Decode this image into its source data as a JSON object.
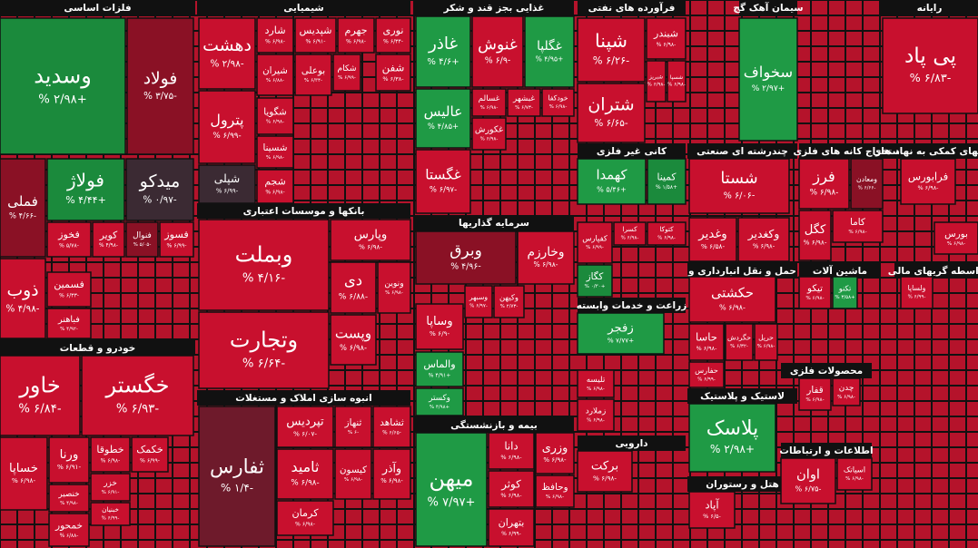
{
  "sectors": [
    {
      "title": "فلزات اساسی",
      "tiles": [
        {
          "name": "وسدید",
          "change": "+۲/۹۸ %",
          "color": "#1b8a3c"
        },
        {
          "name": "فولاد",
          "change": "-۳/۷۵ %",
          "color": "#8a1125"
        },
        {
          "name": "فملی",
          "change": "-۴/۶۶ %",
          "color": "#8a1125"
        },
        {
          "name": "فولاژ",
          "change": "+۴/۴۴ %",
          "color": "#1b8a3c"
        },
        {
          "name": "میدکو",
          "change": "-۰/۹۷ %",
          "color": "#3b2a33"
        },
        {
          "name": "کویر",
          "change": "-۴/۹۸ %",
          "color": "#c8102e"
        },
        {
          "name": "فنوال",
          "change": "-۵/۰۵ %",
          "color": "#8a1125"
        },
        {
          "name": "فسوز",
          "change": "-۶/۹۹ %",
          "color": "#c8102e"
        },
        {
          "name": "فخوز",
          "change": "-۵/۷۸ %",
          "color": "#c8102e"
        },
        {
          "name": "ذوب",
          "change": "-۴/۹۸ %",
          "color": "#c8102e"
        },
        {
          "name": "فسمین",
          "change": "-۶/۳۳ %",
          "color": "#c8102e"
        },
        {
          "name": "فباهنر",
          "change": "-۴/۹۲ %",
          "color": "#c8102e"
        }
      ]
    },
    {
      "title": "خودرو و قطعات",
      "tiles": [
        {
          "name": "خاور",
          "change": "-۶/۸۴ %",
          "color": "#c8102e"
        },
        {
          "name": "خگستر",
          "change": "-۶/۹۳ %",
          "color": "#c8102e"
        },
        {
          "name": "خساپا",
          "change": "-۶/۹۸ %",
          "color": "#c8102e"
        },
        {
          "name": "ورنا",
          "change": "-۶/۹۱ %",
          "color": "#c8102e"
        },
        {
          "name": "خطوقا",
          "change": "-۶/۹۸ %",
          "color": "#c8102e"
        },
        {
          "name": "خکمک",
          "change": "-۶/۹۹ %",
          "color": "#c8102e"
        },
        {
          "name": "خزر",
          "change": "-۶/۹۱ %",
          "color": "#c8102e"
        },
        {
          "name": "خنصیر",
          "change": "-۴/۹۸ %",
          "color": "#c8102e"
        },
        {
          "name": "خبنیان",
          "change": "-۶/۹۹ %",
          "color": "#c8102e"
        },
        {
          "name": "خمحور",
          "change": "-۶/۸۸ %",
          "color": "#c8102e"
        }
      ]
    },
    {
      "title": "شیمیایی",
      "tiles": [
        {
          "name": "دهشت",
          "change": "-۲/۹۸ %",
          "color": "#c8102e"
        },
        {
          "name": "شارد",
          "change": "-۶/۹۸ %",
          "color": "#c8102e"
        },
        {
          "name": "شپدیس",
          "change": "-۶/۹۱ %",
          "color": "#c8102e"
        },
        {
          "name": "جهرم",
          "change": "-۶/۹۸ %",
          "color": "#c8102e"
        },
        {
          "name": "نوری",
          "change": "-۶/۳۴ %",
          "color": "#c8102e"
        },
        {
          "name": "شیران",
          "change": "-۶/۸۸ %",
          "color": "#c8102e"
        },
        {
          "name": "بوعلی",
          "change": "-۶/۳۴ %",
          "color": "#c8102e"
        },
        {
          "name": "شکام",
          "change": "-۶/۹۹ %",
          "color": "#c8102e"
        },
        {
          "name": "شفن",
          "change": "-۶/۳۸ %",
          "color": "#c8102e"
        },
        {
          "name": "پترول",
          "change": "-۶/۹۹ %",
          "color": "#c8102e"
        },
        {
          "name": "شگویا",
          "change": "-۶/۹۸ %",
          "color": "#c8102e"
        },
        {
          "name": "شسینا",
          "change": "-۶/۹۸ %",
          "color": "#c8102e"
        },
        {
          "name": "شپلی",
          "change": "-۶/۹۹ %",
          "color": "#3b2a33"
        },
        {
          "name": "شجم",
          "change": "-۶/۹۸ %",
          "color": "#c8102e"
        }
      ]
    },
    {
      "title": "بانکها و موسسات اعتباری",
      "tiles": [
        {
          "name": "وبملت",
          "change": "-۴/۱۶ %",
          "color": "#c8102e"
        },
        {
          "name": "وپارس",
          "change": "-۶/۹۸ %",
          "color": "#c8102e"
        },
        {
          "name": "دی",
          "change": "-۶/۸۸ %",
          "color": "#c8102e"
        },
        {
          "name": "ونوین",
          "change": "-۶/۹۸ %",
          "color": "#c8102e"
        },
        {
          "name": "وتجارت",
          "change": "-۶/۶۴ %",
          "color": "#c8102e"
        },
        {
          "name": "وپست",
          "change": "-۶/۹۸ %",
          "color": "#c8102e"
        }
      ]
    },
    {
      "title": "انبوه سازی املاک و مستغلات",
      "tiles": [
        {
          "name": "ثفارس",
          "change": "-۱/۴ %",
          "color": "#6e1a2b"
        },
        {
          "name": "تپردیس",
          "change": "-۶/۰۷ %",
          "color": "#c8102e"
        },
        {
          "name": "ثنهاز",
          "change": "-۶ %",
          "color": "#c8102e"
        },
        {
          "name": "ثشاهد",
          "change": "-۶/۶۵ %",
          "color": "#c8102e"
        },
        {
          "name": "ثامید",
          "change": "-۶/۹۸ %",
          "color": "#c8102e"
        },
        {
          "name": "کیسون",
          "change": "-۶/۹۸ %",
          "color": "#c8102e"
        },
        {
          "name": "وآذر",
          "change": "-۶/۹۸ %",
          "color": "#c8102e"
        },
        {
          "name": "کرمان",
          "change": "-۶/۹۸ %",
          "color": "#c8102e"
        }
      ]
    },
    {
      "title": "غذایی بجز قند و شکر",
      "tiles": [
        {
          "name": "غاذر",
          "change": "+۴/۶ %",
          "color": "#1f9a45"
        },
        {
          "name": "غنوش",
          "change": "-۶/۹ %",
          "color": "#c8102e"
        },
        {
          "name": "غگلپا",
          "change": "+۴/۹۵ %",
          "color": "#1f9a45"
        },
        {
          "name": "عالیس",
          "change": "+۴/۸۵ %",
          "color": "#1f9a45"
        },
        {
          "name": "غسالم",
          "change": "-۶/۹۸ %",
          "color": "#c8102e"
        },
        {
          "name": "غبشهر",
          "change": "-۶/۷۳ %",
          "color": "#c8102e"
        },
        {
          "name": "خودکفا",
          "change": "-۶/۹۸ %",
          "color": "#c8102e"
        },
        {
          "name": "غکورش",
          "change": "-۶/۹۸ %",
          "color": "#c8102e"
        },
        {
          "name": "غگستا",
          "change": "-۶/۹۷ %",
          "color": "#c8102e"
        }
      ]
    },
    {
      "title": "سرمایه گذاریها",
      "tiles": [
        {
          "name": "وبرق",
          "change": "-۴/۹۶ %",
          "color": "#8a1125"
        },
        {
          "name": "وخارزم",
          "change": "-۶/۹۸ %",
          "color": "#c8102e"
        },
        {
          "name": "وساپا",
          "change": "-۶/۹ %",
          "color": "#c8102e"
        },
        {
          "name": "وسبهر",
          "change": "-۶/۹۷ %",
          "color": "#c8102e"
        },
        {
          "name": "وکیهن",
          "change": "-۲/۷۳ %",
          "color": "#c8102e"
        },
        {
          "name": "والماس",
          "change": "+۴/۹۱ %",
          "color": "#1f9a45"
        },
        {
          "name": "وکستر",
          "change": "+۴/۹۸ %",
          "color": "#1f9a45"
        }
      ]
    },
    {
      "title": "بیمه و بازنشستگی",
      "tiles": [
        {
          "name": "میهن",
          "change": "+۷/۹۷ %",
          "color": "#1f9a45"
        },
        {
          "name": "دانا",
          "change": "-۶/۹۸ %",
          "color": "#c8102e"
        },
        {
          "name": "وزری",
          "change": "-۶/۹۸ %",
          "color": "#c8102e"
        },
        {
          "name": "کوثر",
          "change": "-۶/۹۸ %",
          "color": "#c8102e"
        },
        {
          "name": "وحافظ",
          "change": "-۶/۹۸ %",
          "color": "#c8102e"
        },
        {
          "name": "بتهران",
          "change": "-۶/۹۹ %",
          "color": "#c8102e"
        }
      ]
    },
    {
      "title": "فرآورده های نفتی",
      "tiles": [
        {
          "name": "شپنا",
          "change": "-۶/۲۶ %",
          "color": "#c8102e"
        },
        {
          "name": "شبندر",
          "change": "-۶/۹۸ %",
          "color": "#c8102e"
        },
        {
          "name": "شتران",
          "change": "-۶/۶۵ %",
          "color": "#c8102e"
        },
        {
          "name": "شبریز",
          "change": "-۶/۹۸ %",
          "color": "#c8102e"
        },
        {
          "name": "شسپا",
          "change": "-۶/۹۸ %",
          "color": "#c8102e"
        }
      ]
    },
    {
      "title": "کانی غیر فلزی",
      "tiles": [
        {
          "name": "کهمدا",
          "change": "+۵/۴۶ %",
          "color": "#1f9a45"
        },
        {
          "name": "کمینا",
          "change": "+۱/۵۸ %",
          "color": "#1b8a3c"
        },
        {
          "name": "کفپارس",
          "change": "-۶/۹۹ %",
          "color": "#c8102e"
        },
        {
          "name": "کسرا",
          "change": "-۶/۹۸ %",
          "color": "#c8102e"
        },
        {
          "name": "کتوکا",
          "change": "-۶/۹۸ %",
          "color": "#c8102e"
        },
        {
          "name": "کگاز",
          "change": "+۰/۳۰ %",
          "color": "#1b8a3c"
        }
      ]
    },
    {
      "title": "زراعت و خدمات وابسته",
      "tiles": [
        {
          "name": "زفجر",
          "change": "+۷/۷۷ %",
          "color": "#1f9a45"
        },
        {
          "name": "تلیسه",
          "change": "-۶/۹۸ %",
          "color": "#c8102e"
        },
        {
          "name": "زملارد",
          "change": "-۶/۹۸ %",
          "color": "#c8102e"
        }
      ]
    },
    {
      "title": "دارویی",
      "tiles": [
        {
          "name": "برکت",
          "change": "-۶/۹۸ %",
          "color": "#c8102e"
        }
      ]
    },
    {
      "title": "سیمان آهک گچ",
      "tiles": [
        {
          "name": "سخواف",
          "change": "+۲/۹۷ %",
          "color": "#1f9a45"
        }
      ]
    },
    {
      "title": "چندرشته ای صنعتی",
      "tiles": [
        {
          "name": "شستا",
          "change": "-۶/۰۶ %",
          "color": "#c8102e"
        },
        {
          "name": "وغدیر",
          "change": "-۶/۵۸ %",
          "color": "#c8102e"
        },
        {
          "name": "وکغدیر",
          "change": "-۶/۹۸ %",
          "color": "#c8102e"
        }
      ]
    },
    {
      "title": "حمل و نقل انبارداری و",
      "tiles": [
        {
          "name": "حکشتی",
          "change": "-۶/۹۸ %",
          "color": "#c8102e"
        },
        {
          "name": "حاسا",
          "change": "-۶/۹۸ %",
          "color": "#c8102e"
        },
        {
          "name": "حگردش",
          "change": "-۶/۳۲ %",
          "color": "#c8102e"
        },
        {
          "name": "حریل",
          "change": "-۶/۹۸ %",
          "color": "#c8102e"
        },
        {
          "name": "حفارس",
          "change": "-۶/۹۹ %",
          "color": "#c8102e"
        }
      ]
    },
    {
      "title": "لاستیک و پلاستیک",
      "tiles": [
        {
          "name": "پلاسک",
          "change": "+۲/۹۸ %",
          "color": "#1f9a45"
        }
      ]
    },
    {
      "title": "هتل و رستوران",
      "tiles": [
        {
          "name": "آپاد",
          "change": "-۶/۵ %",
          "color": "#c8102e"
        }
      ]
    },
    {
      "title": "رایانه",
      "tiles": [
        {
          "name": "پی پاد",
          "change": "-۶/۸۳ %",
          "color": "#c8102e"
        }
      ]
    },
    {
      "title": "استخراج کانه های فلزی",
      "tiles": [
        {
          "name": "فرز",
          "change": "-۶/۹۸ %",
          "color": "#c8102e"
        },
        {
          "name": "ومعادن",
          "change": "-۶/۶۶ %",
          "color": "#8a1125"
        },
        {
          "name": "کاما",
          "change": "-۶/۹۸ %",
          "color": "#c8102e"
        },
        {
          "name": "کگل",
          "change": "-۶/۹۸ %",
          "color": "#c8102e"
        }
      ]
    },
    {
      "title": "ماشین آلات",
      "tiles": [
        {
          "name": "تیکو",
          "change": "-۶/۹۸ %",
          "color": "#c8102e"
        },
        {
          "name": "تکنو",
          "change": "+۳/۵۸ %",
          "color": "#1f9a45"
        }
      ]
    },
    {
      "title": "محصولات فلزی",
      "tiles": [
        {
          "name": "قفار",
          "change": "-۶/۹۸ %",
          "color": "#c8102e"
        },
        {
          "name": "چدن",
          "change": "-۶/۹۸ %",
          "color": "#c8102e"
        }
      ]
    },
    {
      "title": "اطلاعات و ارتباطات",
      "tiles": [
        {
          "name": "اوان",
          "change": "-۶/۷۵ %",
          "color": "#c8102e"
        },
        {
          "name": "اسیاتک",
          "change": "-۶/۹۸ %",
          "color": "#c8102e"
        }
      ]
    },
    {
      "title": "فعالیتهای کمکی به نهاد های",
      "tiles": [
        {
          "name": "فرابورس",
          "change": "-۶/۹۸ %",
          "color": "#c8102e"
        },
        {
          "name": "بورس",
          "change": "-۶/۹۸ %",
          "color": "#c8102e"
        }
      ]
    },
    {
      "title": "واسطه گریهای مالی",
      "tiles": [
        {
          "name": "ولساپا",
          "change": "-۶/۹۹ %",
          "color": "#c8102e"
        }
      ]
    }
  ]
}
